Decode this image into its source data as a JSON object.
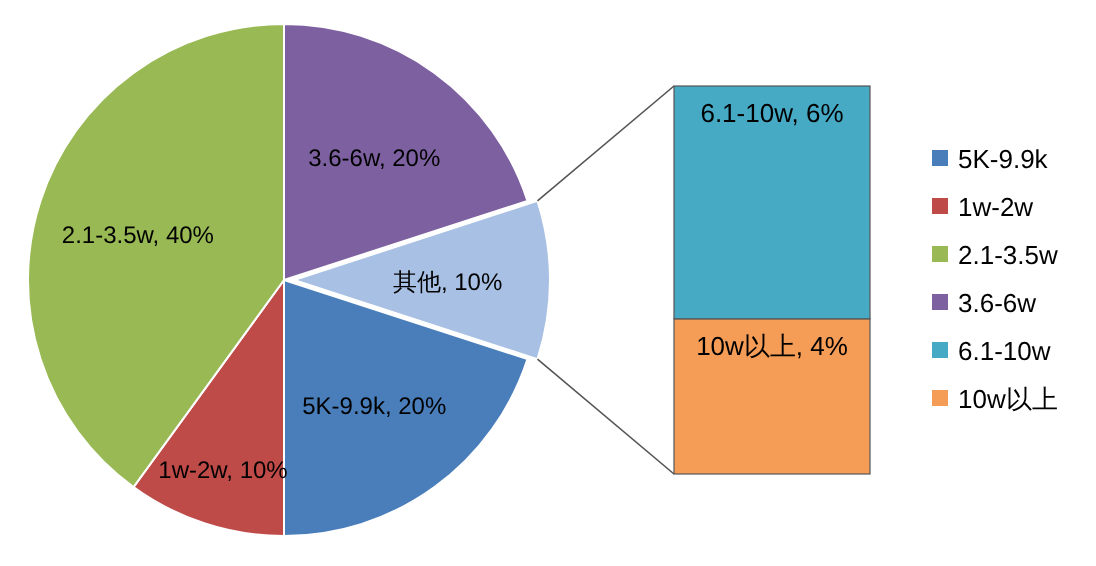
{
  "chart_data": [
    {
      "type": "pie",
      "categories": [
        "5K-9.9k",
        "1w-2w",
        "2.1-3.5w",
        "3.6-6w",
        null
      ],
      "values": [
        20,
        10,
        40,
        20,
        10
      ],
      "colors": [
        "#4a7ebb",
        "#be4b48",
        "#98b954",
        "#7d60a0",
        "#a7c0e3"
      ],
      "value_labels": [
        "5K-9.9k, 20%",
        "1w-2w, 10%",
        "2.1-3.5w, 40%",
        "3.6-6w, 20%",
        "其他, 10%"
      ],
      "legend": "right"
    },
    {
      "type": "bar",
      "stacked": true,
      "categories": [
        null
      ],
      "series": [
        {
          "name": "10w以上",
          "color": "#f59d56",
          "values": [
            4
          ],
          "value_labels": [
            "10w以上, 4%"
          ]
        },
        {
          "name": "6.1-10w",
          "color": "#46aac5",
          "values": [
            6
          ],
          "value_labels": [
            "6.1-10w, 6%"
          ]
        }
      ],
      "legend": "right"
    }
  ]
}
